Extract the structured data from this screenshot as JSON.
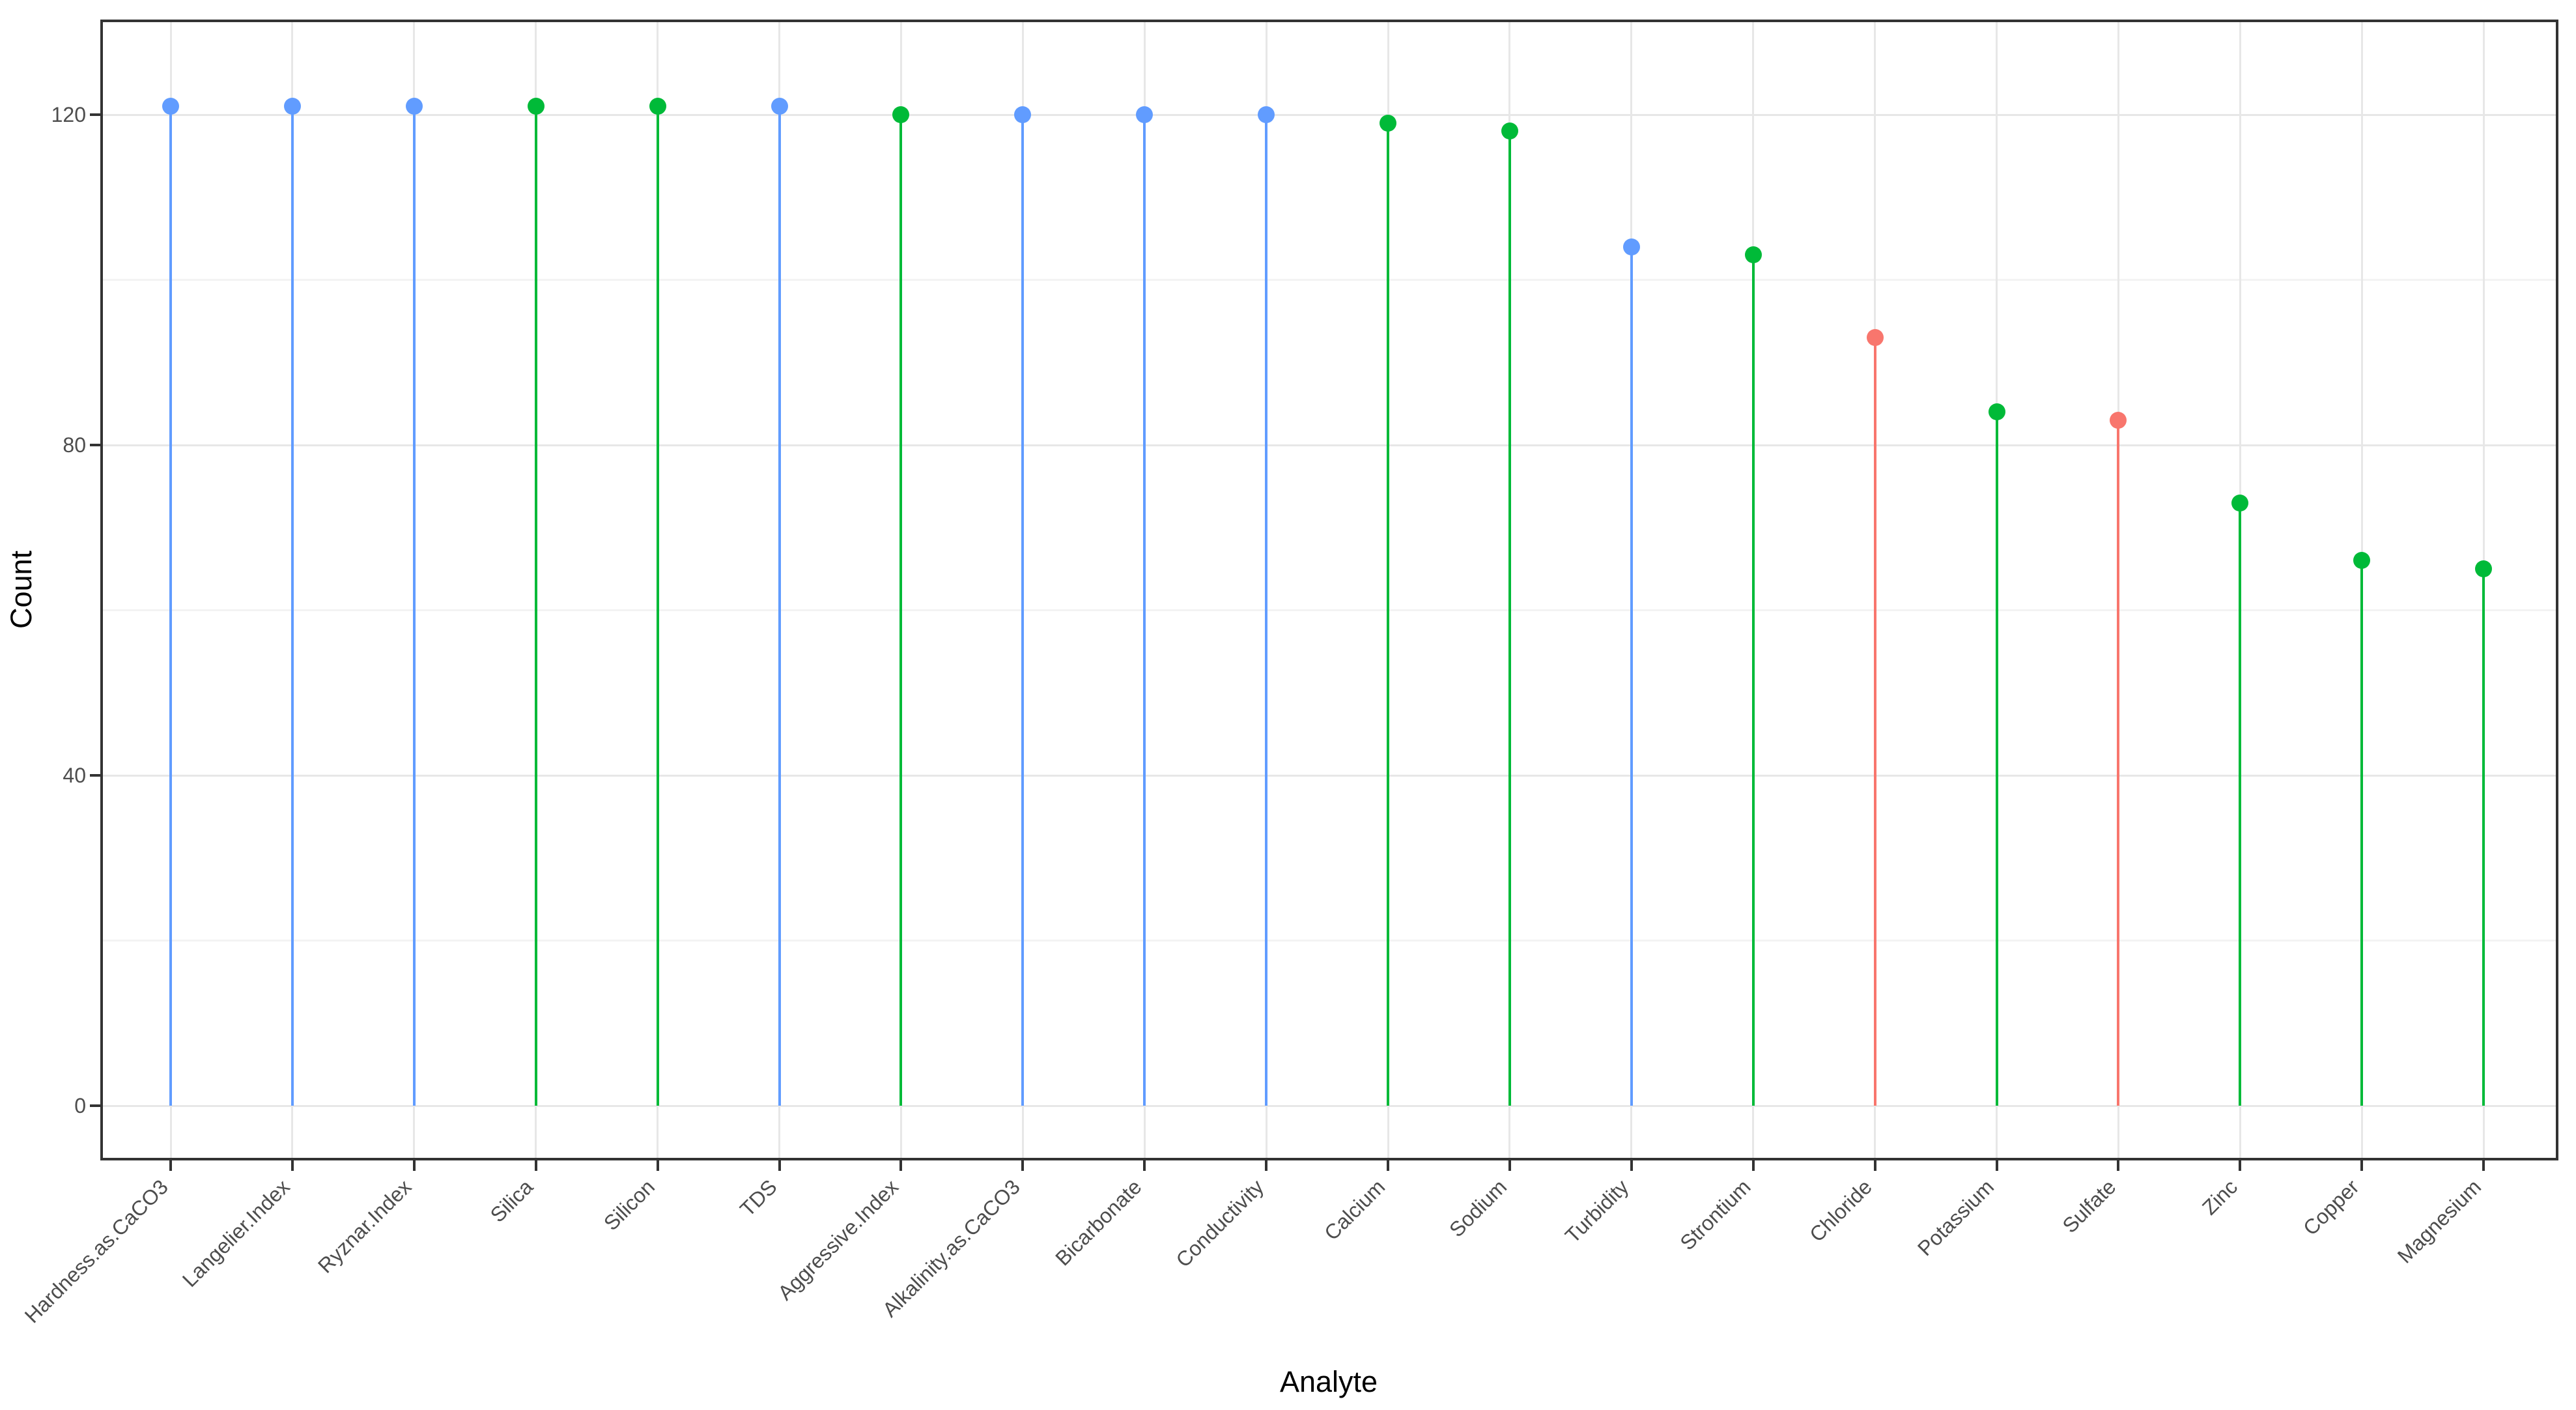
{
  "chart_data": {
    "type": "lollipop",
    "title": "",
    "xlabel": "Analyte",
    "ylabel": "Count",
    "legend": "none",
    "grid": true,
    "y_axis": {
      "ticks": [
        0,
        40,
        80,
        120
      ],
      "tick_labels": [
        "0",
        "40",
        "80",
        "120"
      ],
      "minor_ticks": [
        20,
        60,
        100
      ],
      "range_shown": [
        -6,
        131
      ]
    },
    "palette": {
      "blue": "#619CFF",
      "green": "#00BA38",
      "red": "#F8766D"
    },
    "colors": {
      "background": "#FFFFFF",
      "panel_border": "#333333",
      "grid_major": "#E7E7E7",
      "grid_minor": "#F3F3F3",
      "axis_text": "#4D4D4D",
      "axis_title": "#000000",
      "tick_mark": "#333333"
    },
    "categories": [
      "Hardness.as.CaCO3",
      "Langelier.Index",
      "Ryznar.Index",
      "Silica",
      "Silicon",
      "TDS",
      "Aggressive.Index",
      "Alkalinity.as.CaCO3",
      "Bicarbonate",
      "Conductivity",
      "Calcium",
      "Sodium",
      "Turbidity",
      "Strontium",
      "Chloride",
      "Potassium",
      "Sulfate",
      "Zinc",
      "Copper",
      "Magnesium"
    ],
    "values": [
      121,
      121,
      121,
      121,
      121,
      121,
      120,
      120,
      120,
      120,
      119,
      118,
      104,
      103,
      93,
      84,
      83,
      73,
      66,
      65
    ],
    "point_groups": [
      "blue",
      "blue",
      "blue",
      "green",
      "green",
      "blue",
      "green",
      "blue",
      "blue",
      "blue",
      "green",
      "green",
      "blue",
      "green",
      "red",
      "green",
      "red",
      "green",
      "green",
      "green"
    ]
  }
}
